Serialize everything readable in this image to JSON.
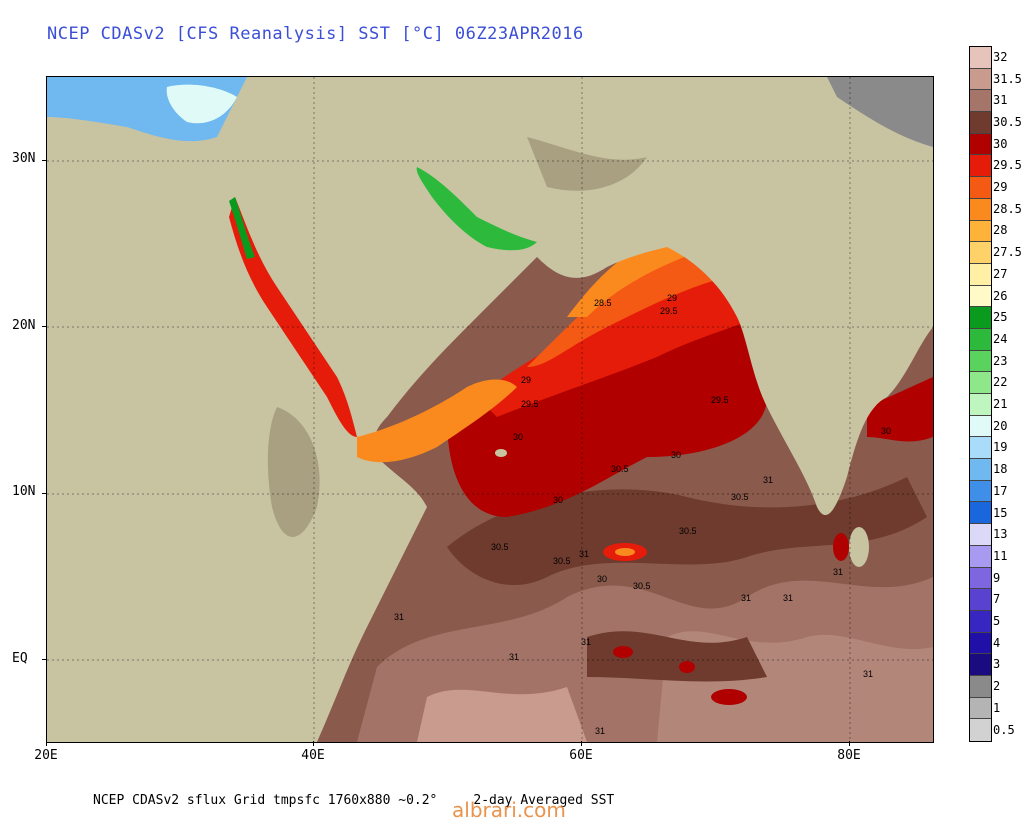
{
  "title": "NCEP CDASv2 [CFS Reanalysis] SST [°C] 06Z23APR2016",
  "footer_left": "NCEP CDASv2 sflux Grid tmpsfc 1760x880 ~0.2°",
  "footer_right": "2-day Averaged SST",
  "watermark": "albrari.com",
  "lat_labels": [
    "30N",
    "20N",
    "10N",
    "EQ"
  ],
  "lon_labels": [
    "20E",
    "40E",
    "60E",
    "80E"
  ],
  "legend": [
    {
      "label": "32",
      "color": "#e6c4bb"
    },
    {
      "label": "31.5",
      "color": "#c99a8e"
    },
    {
      "label": "31",
      "color": "#a6756a"
    },
    {
      "label": "30.5",
      "color": "#6e3b2e"
    },
    {
      "label": "30",
      "color": "#b00000"
    },
    {
      "label": "29.5",
      "color": "#e61c0a"
    },
    {
      "label": "29",
      "color": "#f55a14"
    },
    {
      "label": "28.5",
      "color": "#fb8a1e"
    },
    {
      "label": "28",
      "color": "#fdb23a"
    },
    {
      "label": "27.5",
      "color": "#fed268"
    },
    {
      "label": "27",
      "color": "#fff0a6"
    },
    {
      "label": "26",
      "color": "#fffac8"
    },
    {
      "label": "25",
      "color": "#0a9a1e"
    },
    {
      "label": "24",
      "color": "#2cb93c"
    },
    {
      "label": "23",
      "color": "#5ad25e"
    },
    {
      "label": "22",
      "color": "#8ee88a"
    },
    {
      "label": "21",
      "color": "#bff5be"
    },
    {
      "label": "20",
      "color": "#e0fbf7"
    },
    {
      "label": "19",
      "color": "#a8dcf8"
    },
    {
      "label": "18",
      "color": "#6fb8f0"
    },
    {
      "label": "17",
      "color": "#3f8ee8"
    },
    {
      "label": "15",
      "color": "#1a66dc"
    },
    {
      "label": "13",
      "color": "#dcd8f8"
    },
    {
      "label": "11",
      "color": "#a89af0"
    },
    {
      "label": "9",
      "color": "#7e66e0"
    },
    {
      "label": "7",
      "color": "#5a42d0"
    },
    {
      "label": "5",
      "color": "#3826c0"
    },
    {
      "label": "4",
      "color": "#2010a8"
    },
    {
      "label": "3",
      "color": "#1a0c80"
    },
    {
      "label": "2",
      "color": "#8a8a8a"
    },
    {
      "label": "1",
      "color": "#b4b4b4"
    },
    {
      "label": "0.5",
      "color": "#d2d2d2"
    }
  ],
  "contour_labels": [
    "28.5",
    "29",
    "29.5",
    "29",
    "29.5",
    "29.5",
    "30",
    "30",
    "30.5",
    "30",
    "30.5",
    "31",
    "31",
    "30.5",
    "30.5",
    "31",
    "30",
    "30.5",
    "30.5",
    "31",
    "31",
    "31",
    "31",
    "31",
    "31",
    "30",
    "31"
  ],
  "colors": {
    "land": "#c8c4a2",
    "land_dark": "#a8a080",
    "mountain": "#8a7a5a",
    "ocean_base": "#8a5a4c"
  }
}
